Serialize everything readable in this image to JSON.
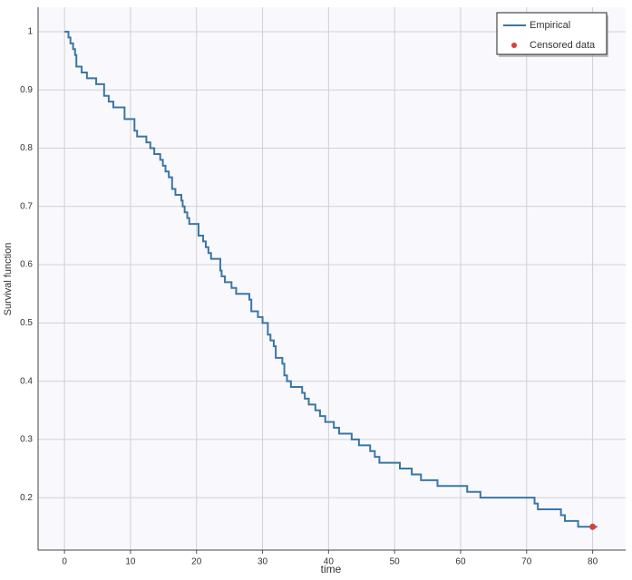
{
  "chart_data": {
    "type": "step",
    "x_label": "time",
    "y_label": "Survival function",
    "xlim": [
      -4,
      85
    ],
    "ylim": [
      0.11,
      1.042
    ],
    "xticks": [
      0,
      10,
      20,
      30,
      40,
      50,
      60,
      70,
      80
    ],
    "yticks": [
      0.2,
      0.3,
      0.4,
      0.5,
      0.6,
      0.7,
      0.8,
      0.9,
      1
    ],
    "grid": true,
    "legend": "top-right",
    "series": [
      {
        "name": "Empirical",
        "color": "#3a76a6",
        "x": [
          0,
          0.6,
          0.9,
          1.3,
          1.6,
          1.8,
          2.6,
          3.4,
          4.8,
          6.0,
          6.7,
          7.4,
          9.1,
          10.6,
          11.0,
          12.4,
          13.0,
          13.6,
          14.5,
          14.9,
          15.3,
          15.8,
          16.3,
          16.8,
          17.7,
          17.9,
          18.2,
          18.6,
          18.9,
          20.3,
          21.0,
          21.4,
          21.8,
          22.2,
          23.6,
          23.8,
          24.3,
          25.3,
          26.0,
          28.0,
          28.3,
          29.3,
          30.0,
          30.8,
          31.2,
          31.7,
          32.0,
          33.0,
          33.3,
          33.7,
          34.3,
          36.0,
          36.4,
          37.0,
          38.0,
          38.7,
          39.5,
          40.8,
          41.6,
          43.5,
          44.6,
          46.3,
          47.0,
          47.7,
          50.8,
          52.6,
          54.0,
          56.5,
          61.0,
          63.0,
          71.2,
          71.7,
          75.2,
          75.8,
          77.8,
          80.7
        ],
        "values": [
          1.0,
          0.99,
          0.98,
          0.97,
          0.96,
          0.94,
          0.93,
          0.92,
          0.91,
          0.89,
          0.88,
          0.87,
          0.85,
          0.83,
          0.82,
          0.81,
          0.8,
          0.79,
          0.78,
          0.77,
          0.76,
          0.75,
          0.73,
          0.72,
          0.71,
          0.7,
          0.69,
          0.68,
          0.67,
          0.65,
          0.64,
          0.63,
          0.62,
          0.61,
          0.59,
          0.58,
          0.57,
          0.56,
          0.55,
          0.54,
          0.52,
          0.51,
          0.5,
          0.48,
          0.47,
          0.46,
          0.44,
          0.43,
          0.41,
          0.4,
          0.39,
          0.38,
          0.37,
          0.36,
          0.35,
          0.34,
          0.33,
          0.32,
          0.31,
          0.3,
          0.29,
          0.28,
          0.27,
          0.26,
          0.25,
          0.24,
          0.23,
          0.22,
          0.21,
          0.2,
          0.19,
          0.18,
          0.17,
          0.16,
          0.15,
          0.15
        ]
      },
      {
        "name": "Censored data",
        "color": "#d9403a",
        "kind": "scatter",
        "x": [
          80
        ],
        "values": [
          0.15
        ]
      }
    ]
  }
}
